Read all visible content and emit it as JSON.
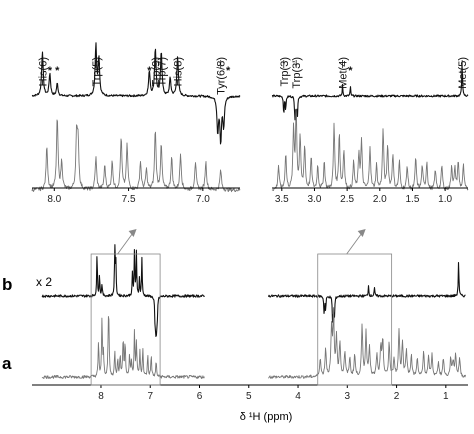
{
  "chart_data": {
    "type": "line",
    "xlabel": "δ ¹H (ppm)",
    "x_reversed": true,
    "colors": {
      "dark_trace": "#111111",
      "light_trace": "#777777",
      "box": "#888888"
    },
    "top_panel": {
      "left_segment": {
        "xlim": [
          8.15,
          6.75
        ],
        "ticks": [
          8.0,
          7.5,
          7.0
        ],
        "tick_labels": [
          "8.0",
          "7.5",
          "7.0"
        ]
      },
      "right_segment": {
        "xlim": [
          3.65,
          0.65
        ],
        "ticks": [
          3.5,
          3.0,
          2.5,
          2.0,
          1.5,
          1.0
        ],
        "tick_labels": [
          "3.5",
          "3.0",
          "2.5",
          "2.0",
          "1.5",
          "1.0"
        ]
      },
      "peak_labels": [
        {
          "text": "His(6)",
          "ppm": 8.08
        },
        {
          "text": "Trp(5)",
          "ppm": 7.72
        },
        {
          "text": "Trp(9)",
          "ppm": 7.32
        },
        {
          "text": "Trp(7)",
          "ppm": 7.28
        },
        {
          "text": "His(8)",
          "ppm": 7.17
        },
        {
          "text": "Tyr(6/8)",
          "ppm": 6.88
        },
        {
          "text": "Trp(3)",
          "ppm": 3.47
        },
        {
          "text": "Trp(3')",
          "ppm": 3.28
        },
        {
          "text": "Met(4)",
          "ppm": 2.57
        },
        {
          "text": "Met(5)",
          "ppm": 0.74
        }
      ],
      "asterisks": [
        {
          "text": "*",
          "ppm": 8.03
        },
        {
          "text": "*",
          "ppm": 7.98
        },
        {
          "text": "*",
          "ppm": 7.36
        },
        {
          "text": "*",
          "ppm": 6.83
        },
        {
          "text": "*",
          "ppm": 2.45
        }
      ]
    },
    "bottom_panel": {
      "xlim": [
        9.4,
        0.55
      ],
      "ticks": [
        8,
        7,
        6,
        5,
        4,
        3,
        2,
        1
      ],
      "tick_labels": [
        "8",
        "7",
        "6",
        "5",
        "4",
        "3",
        "2",
        "1"
      ],
      "zoom_boxes": [
        [
          8.2,
          6.8
        ],
        [
          3.6,
          2.1
        ]
      ]
    },
    "series": [
      {
        "name": "b",
        "scale_label": "x 2",
        "panel": "both"
      },
      {
        "name": "a",
        "panel": "both"
      }
    ],
    "peaks_b": [
      [
        8.08,
        0.9
      ],
      [
        8.03,
        0.45
      ],
      [
        7.98,
        0.25
      ],
      [
        7.72,
        1.0
      ],
      [
        7.7,
        0.75
      ],
      [
        7.36,
        0.5
      ],
      [
        7.32,
        0.95
      ],
      [
        7.28,
        0.9
      ],
      [
        7.22,
        0.35
      ],
      [
        7.17,
        0.8
      ],
      [
        6.9,
        -0.7
      ],
      [
        6.88,
        -0.9
      ],
      [
        6.86,
        -0.6
      ],
      [
        3.47,
        -0.4
      ],
      [
        3.44,
        -0.3
      ],
      [
        3.3,
        -0.45
      ],
      [
        3.28,
        -0.5
      ],
      [
        3.26,
        -0.35
      ],
      [
        2.57,
        0.22
      ],
      [
        2.45,
        0.18
      ],
      [
        0.74,
        0.75
      ]
    ],
    "peaks_a": [
      [
        8.05,
        0.55
      ],
      [
        7.98,
        0.9
      ],
      [
        7.95,
        0.35
      ],
      [
        7.85,
        0.65
      ],
      [
        7.84,
        0.6
      ],
      [
        7.72,
        0.4
      ],
      [
        7.66,
        0.3
      ],
      [
        7.61,
        0.35
      ],
      [
        7.55,
        0.65
      ],
      [
        7.51,
        0.55
      ],
      [
        7.42,
        0.35
      ],
      [
        7.38,
        0.25
      ],
      [
        7.32,
        0.75
      ],
      [
        7.28,
        0.55
      ],
      [
        7.21,
        0.4
      ],
      [
        7.15,
        0.45
      ],
      [
        7.05,
        0.35
      ],
      [
        6.98,
        0.35
      ],
      [
        6.88,
        0.25
      ],
      [
        3.55,
        0.3
      ],
      [
        3.44,
        0.45
      ],
      [
        3.32,
        0.75
      ],
      [
        3.28,
        0.95
      ],
      [
        3.22,
        0.65
      ],
      [
        3.15,
        0.55
      ],
      [
        3.05,
        0.4
      ],
      [
        2.95,
        0.3
      ],
      [
        2.85,
        0.35
      ],
      [
        2.7,
        0.8
      ],
      [
        2.62,
        0.7
      ],
      [
        2.55,
        0.5
      ],
      [
        2.4,
        0.35
      ],
      [
        2.32,
        0.45
      ],
      [
        2.28,
        0.6
      ],
      [
        2.15,
        0.55
      ],
      [
        2.05,
        0.3
      ],
      [
        1.95,
        0.75
      ],
      [
        1.88,
        0.55
      ],
      [
        1.8,
        0.45
      ],
      [
        1.7,
        0.35
      ],
      [
        1.58,
        0.3
      ],
      [
        1.45,
        0.4
      ],
      [
        1.35,
        0.3
      ],
      [
        1.28,
        0.35
      ],
      [
        1.15,
        0.25
      ],
      [
        1.05,
        0.3
      ],
      [
        0.9,
        0.3
      ],
      [
        0.85,
        0.25
      ],
      [
        0.8,
        0.35
      ],
      [
        0.72,
        0.3
      ]
    ]
  }
}
